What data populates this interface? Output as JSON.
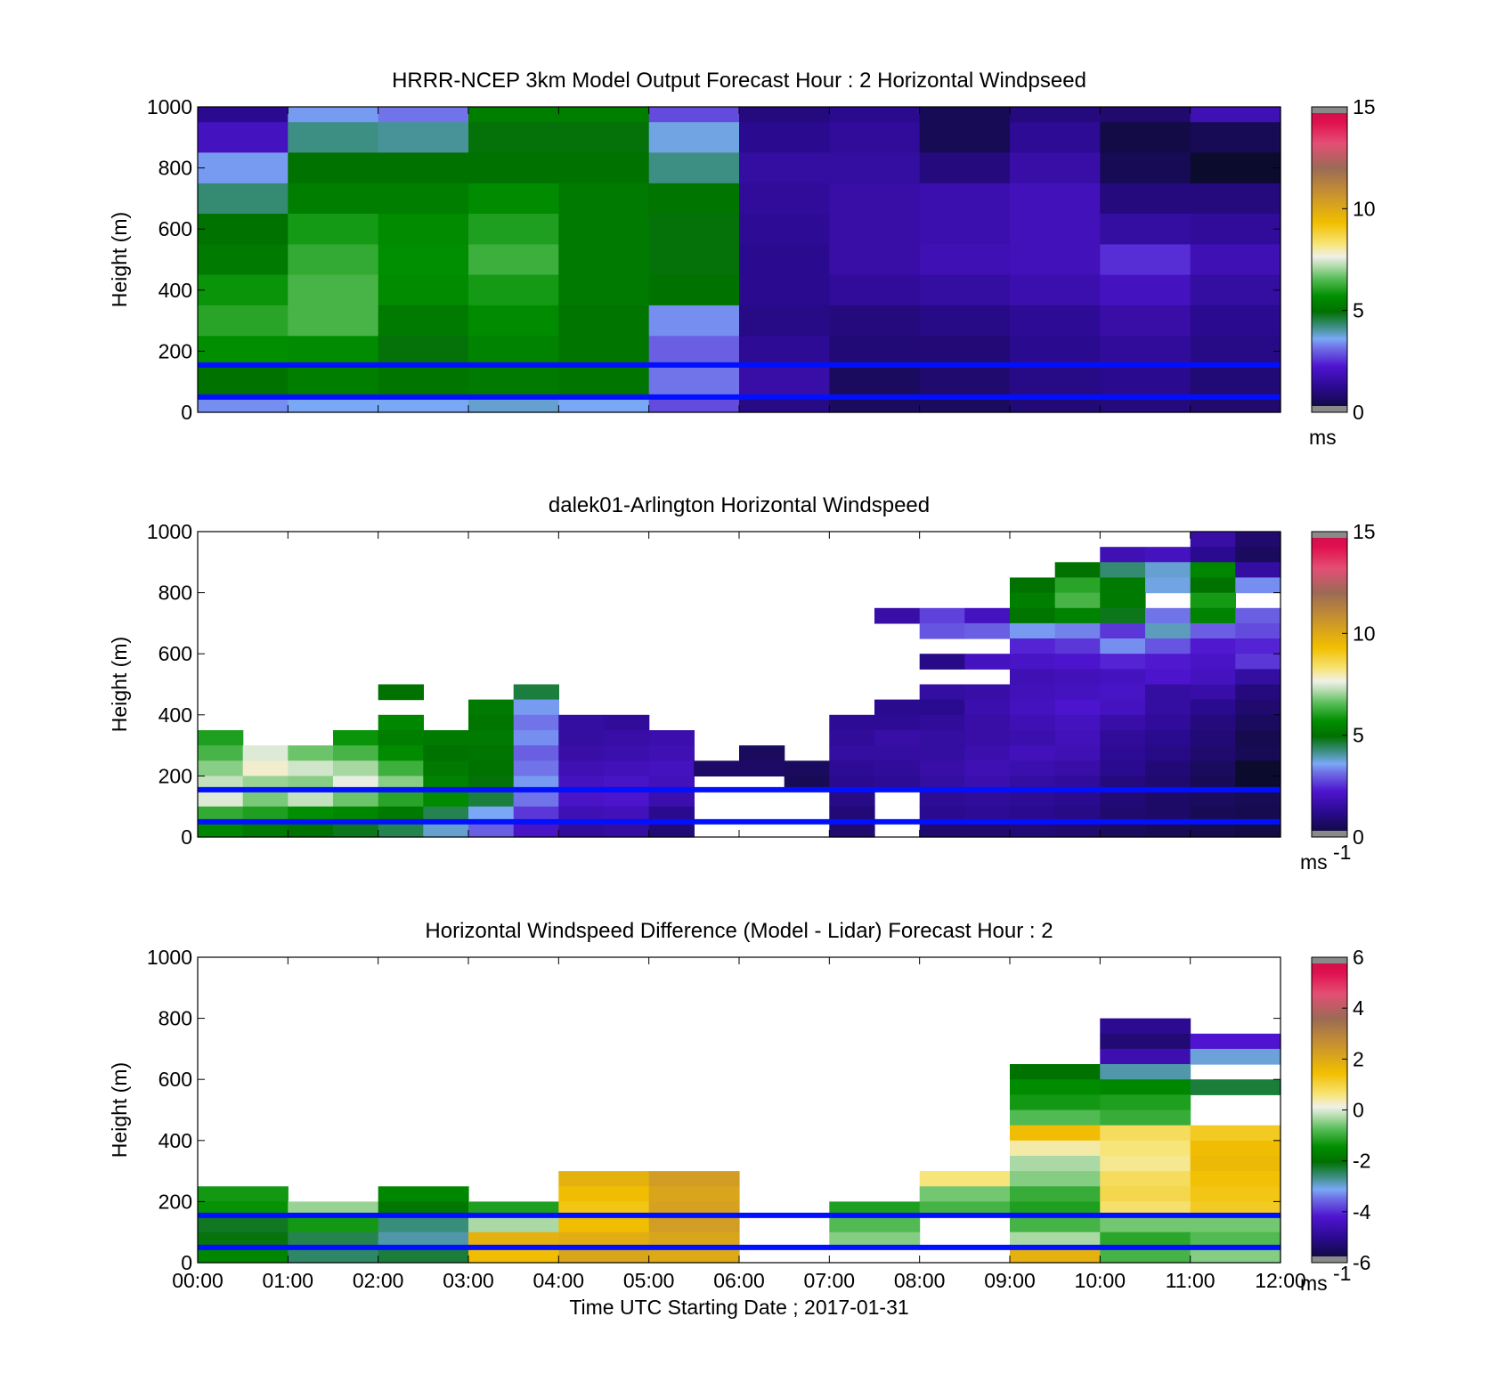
{
  "chart_data": [
    {
      "type": "heatmap",
      "title": "HRRR-NCEP 3km Model Output   Forecast Hour : 2 Horizontal Windpseed",
      "ylabel": "Height (m)",
      "xlabel": "",
      "xlim": [
        0,
        12
      ],
      "ylim": [
        0,
        1000
      ],
      "yticks": [
        "0",
        "200",
        "400",
        "600",
        "800",
        "1000"
      ],
      "xticks": [
        "",
        "",
        "",
        "",
        "",
        "",
        "",
        "",
        "",
        "",
        "",
        "",
        ""
      ],
      "colorbar": {
        "min": 0,
        "max": 15,
        "ticks": [
          "0",
          "5",
          "10",
          "15"
        ],
        "unit": "ms",
        "unit_sup": ""
      },
      "reference_lines_m": [
        155,
        50
      ],
      "grid": false,
      "x_hours": [
        0,
        1,
        2,
        3,
        4,
        5,
        6,
        7,
        8,
        9,
        10,
        11
      ],
      "heights_m": [
        1000,
        900,
        800,
        700,
        600,
        500,
        400,
        300,
        200,
        100,
        0
      ],
      "values": [
        [
          1.2,
          3.5,
          3.2,
          5.3,
          5.3,
          2.8,
          1.0,
          1.2,
          0.5,
          1.0,
          0.8,
          1.8
        ],
        [
          2.0,
          4.2,
          4.1,
          4.9,
          4.9,
          3.7,
          1.2,
          1.4,
          0.5,
          1.3,
          0.3,
          0.5
        ],
        [
          3.5,
          5.0,
          5.0,
          5.0,
          5.0,
          4.2,
          1.5,
          1.5,
          1.0,
          1.6,
          0.5,
          0.0
        ],
        [
          4.3,
          5.3,
          5.3,
          5.6,
          5.2,
          5.1,
          1.4,
          1.6,
          1.7,
          1.9,
          1.0,
          1.0
        ],
        [
          5.0,
          5.9,
          5.6,
          6.0,
          5.2,
          4.9,
          1.3,
          1.6,
          1.7,
          1.9,
          1.5,
          1.4
        ],
        [
          5.2,
          6.2,
          5.7,
          6.3,
          5.2,
          4.9,
          1.2,
          1.6,
          1.8,
          1.9,
          2.5,
          1.8
        ],
        [
          5.8,
          6.4,
          5.6,
          5.9,
          5.2,
          5.0,
          1.2,
          1.4,
          1.5,
          1.7,
          2.0,
          1.5
        ],
        [
          6.1,
          6.4,
          5.2,
          5.6,
          5.1,
          3.4,
          1.1,
          1.0,
          1.1,
          1.3,
          1.6,
          1.2
        ],
        [
          5.7,
          5.6,
          4.9,
          5.4,
          5.1,
          3.0,
          1.3,
          0.9,
          0.9,
          1.2,
          1.4,
          1.1
        ],
        [
          5.0,
          5.3,
          5.1,
          5.2,
          5.1,
          3.2,
          1.6,
          0.6,
          0.8,
          1.1,
          1.2,
          0.9
        ],
        [
          3.4,
          3.6,
          3.6,
          3.8,
          3.6,
          2.8,
          1.1,
          0.6,
          0.6,
          0.9,
          1.0,
          0.8
        ]
      ]
    },
    {
      "type": "heatmap",
      "title": "dalek01-Arlington  Horizontal Windspeed",
      "ylabel": "Height (m)",
      "xlabel": "",
      "xlim": [
        0,
        12
      ],
      "ylim": [
        0,
        1000
      ],
      "yticks": [
        "0",
        "200",
        "400",
        "600",
        "800",
        "1000"
      ],
      "xticks": [
        "",
        "",
        "",
        "",
        "",
        "",
        "",
        "",
        "",
        "",
        "",
        "",
        ""
      ],
      "colorbar": {
        "min": 0,
        "max": 15,
        "ticks": [
          "0",
          "5",
          "10",
          "15"
        ],
        "unit": "ms",
        "unit_sup": "-1"
      },
      "reference_lines_m": [
        155,
        50
      ],
      "grid": false,
      "x_hours": [
        0,
        0.5,
        1,
        1.5,
        2,
        2.5,
        3,
        3.5,
        4,
        4.5,
        5,
        5.5,
        6,
        6.5,
        7,
        7.5,
        8,
        8.5,
        9,
        9.5,
        10,
        10.5,
        11,
        11.5
      ],
      "heights_m": [
        975,
        925,
        875,
        825,
        775,
        725,
        675,
        625,
        575,
        525,
        475,
        425,
        375,
        325,
        275,
        225,
        175,
        125,
        75,
        25
      ],
      "values": [
        [
          null,
          null,
          null,
          null,
          null,
          null,
          null,
          null,
          null,
          null,
          null,
          null,
          null,
          null,
          null,
          null,
          null,
          null,
          null,
          null,
          null,
          null,
          1.6,
          0.8
        ],
        [
          null,
          null,
          null,
          null,
          null,
          null,
          null,
          null,
          null,
          null,
          null,
          null,
          null,
          null,
          null,
          null,
          null,
          null,
          null,
          null,
          1.8,
          2.0,
          1.2,
          0.6
        ],
        [
          null,
          null,
          null,
          null,
          null,
          null,
          null,
          null,
          null,
          null,
          null,
          null,
          null,
          null,
          null,
          null,
          null,
          null,
          null,
          5.0,
          4.3,
          3.8,
          5.5,
          1.5
        ],
        [
          null,
          null,
          null,
          null,
          null,
          null,
          null,
          null,
          null,
          null,
          null,
          null,
          null,
          null,
          null,
          null,
          null,
          null,
          5.0,
          6.1,
          5.2,
          3.7,
          5.0,
          3.4
        ],
        [
          null,
          null,
          null,
          null,
          null,
          null,
          null,
          null,
          null,
          null,
          null,
          null,
          null,
          null,
          null,
          null,
          null,
          null,
          5.3,
          6.4,
          5.2,
          null,
          5.9,
          null
        ],
        [
          null,
          null,
          null,
          null,
          null,
          null,
          null,
          null,
          null,
          null,
          null,
          null,
          null,
          null,
          null,
          1.6,
          2.7,
          2.0,
          5.1,
          5.4,
          4.8,
          3.2,
          5.4,
          3.0
        ],
        [
          null,
          null,
          null,
          null,
          null,
          null,
          null,
          null,
          null,
          null,
          null,
          null,
          null,
          null,
          null,
          null,
          2.9,
          3.0,
          3.5,
          3.3,
          2.6,
          3.9,
          3.0,
          2.8
        ],
        [
          null,
          null,
          null,
          null,
          null,
          null,
          null,
          null,
          null,
          null,
          null,
          null,
          null,
          null,
          null,
          null,
          null,
          null,
          2.4,
          2.6,
          3.4,
          2.9,
          2.3,
          2.4
        ],
        [
          null,
          null,
          null,
          null,
          null,
          null,
          null,
          null,
          null,
          null,
          null,
          null,
          null,
          null,
          null,
          null,
          1.1,
          2.0,
          2.1,
          2.2,
          2.4,
          2.3,
          2.1,
          2.6
        ],
        [
          null,
          null,
          null,
          null,
          null,
          null,
          null,
          null,
          null,
          null,
          null,
          null,
          null,
          null,
          null,
          null,
          null,
          null,
          1.8,
          1.9,
          2.0,
          2.2,
          2.0,
          1.5
        ],
        [
          null,
          null,
          null,
          null,
          5.0,
          null,
          null,
          4.6,
          null,
          null,
          null,
          null,
          null,
          null,
          null,
          null,
          1.5,
          1.6,
          1.9,
          2.0,
          2.1,
          1.5,
          1.6,
          1.0
        ],
        [
          null,
          null,
          null,
          null,
          null,
          null,
          5.2,
          3.5,
          null,
          null,
          null,
          null,
          null,
          null,
          null,
          1.2,
          1.2,
          1.7,
          2.0,
          2.2,
          2.0,
          1.5,
          1.2,
          0.8
        ],
        [
          null,
          null,
          null,
          null,
          5.5,
          null,
          5.1,
          3.2,
          1.5,
          1.4,
          null,
          null,
          null,
          null,
          1.3,
          1.3,
          1.4,
          1.6,
          1.8,
          2.0,
          1.6,
          1.4,
          1.0,
          0.6
        ],
        [
          6.0,
          null,
          null,
          5.8,
          5.3,
          5.2,
          5.2,
          3.4,
          1.5,
          1.6,
          1.7,
          null,
          null,
          null,
          1.4,
          1.6,
          1.5,
          1.6,
          1.7,
          1.9,
          1.4,
          1.2,
          0.9,
          0.4
        ],
        [
          6.4,
          7.5,
          6.7,
          6.4,
          5.6,
          5.0,
          5.1,
          3.0,
          1.6,
          1.7,
          1.8,
          null,
          0.6,
          null,
          1.5,
          1.5,
          1.5,
          1.7,
          1.9,
          1.8,
          1.3,
          1.1,
          0.8,
          0.5
        ],
        [
          6.9,
          7.8,
          7.4,
          7.1,
          6.3,
          5.2,
          5.0,
          3.2,
          1.8,
          1.9,
          2.0,
          0.7,
          0.7,
          0.6,
          1.3,
          1.4,
          1.6,
          1.8,
          1.7,
          1.6,
          1.2,
          0.9,
          0.6,
          0.0
        ],
        [
          7.3,
          7.0,
          6.9,
          7.6,
          6.9,
          5.4,
          4.9,
          3.5,
          2.0,
          2.1,
          1.9,
          null,
          null,
          0.5,
          1.2,
          1.3,
          1.5,
          1.7,
          1.5,
          1.4,
          1.0,
          0.8,
          0.5,
          0.0
        ],
        [
          7.5,
          6.8,
          7.3,
          6.7,
          6.1,
          5.6,
          4.6,
          3.2,
          2.1,
          2.2,
          1.7,
          null,
          null,
          null,
          1.1,
          null,
          1.3,
          1.4,
          1.3,
          1.2,
          0.9,
          0.7,
          0.6,
          0.5
        ],
        [
          6.2,
          6.0,
          5.7,
          5.5,
          5.2,
          4.5,
          3.6,
          2.6,
          1.8,
          1.9,
          1.2,
          null,
          null,
          null,
          0.9,
          null,
          1.2,
          1.3,
          1.2,
          1.1,
          0.8,
          0.7,
          0.5,
          0.4
        ],
        [
          5.5,
          5.2,
          5.0,
          4.8,
          4.5,
          3.8,
          3.0,
          2.1,
          1.4,
          1.5,
          0.9,
          null,
          null,
          null,
          0.8,
          null,
          0.8,
          0.8,
          0.9,
          0.8,
          0.6,
          0.5,
          0.4,
          0.3
        ]
      ]
    },
    {
      "type": "heatmap",
      "title": "Horizontal Windspeed Difference (Model - Lidar) Forecast Hour : 2",
      "ylabel": "Height (m)",
      "xlabel": "Time UTC  Starting Date ; 2017-01-31",
      "xlim": [
        0,
        12
      ],
      "ylim": [
        0,
        1000
      ],
      "yticks": [
        "0",
        "200",
        "400",
        "600",
        "800",
        "1000"
      ],
      "xticks": [
        "00:00",
        "01:00",
        "02:00",
        "03:00",
        "04:00",
        "05:00",
        "06:00",
        "07:00",
        "08:00",
        "09:00",
        "10:00",
        "11:00",
        "12:00"
      ],
      "colorbar": {
        "min": -6,
        "max": 6,
        "ticks": [
          "-6",
          "-4",
          "-2",
          "0",
          "2",
          "4",
          "6"
        ],
        "unit": "ms",
        "unit_sup": "-1"
      },
      "reference_lines_m": [
        155,
        50
      ],
      "grid": false,
      "x_hours": [
        0,
        1,
        2,
        3,
        4,
        5,
        6,
        7,
        8,
        9,
        10,
        11
      ],
      "heights_m": [
        775,
        725,
        675,
        625,
        575,
        525,
        475,
        425,
        375,
        325,
        275,
        225,
        175,
        125,
        75,
        25
      ],
      "values": [
        [
          null,
          null,
          null,
          null,
          null,
          null,
          null,
          null,
          null,
          null,
          -5.0,
          null
        ],
        [
          null,
          null,
          null,
          null,
          null,
          null,
          null,
          null,
          null,
          null,
          -5.3,
          -4.2
        ],
        [
          null,
          null,
          null,
          null,
          null,
          null,
          null,
          null,
          null,
          null,
          -4.6,
          -3.0
        ],
        [
          null,
          null,
          null,
          null,
          null,
          null,
          null,
          null,
          null,
          -2.0,
          -2.8,
          null
        ],
        [
          null,
          null,
          null,
          null,
          null,
          null,
          null,
          null,
          null,
          -1.5,
          -1.6,
          -2.3
        ],
        [
          null,
          null,
          null,
          null,
          null,
          null,
          null,
          null,
          null,
          -1.3,
          -1.2,
          null
        ],
        [
          null,
          null,
          null,
          null,
          null,
          null,
          null,
          null,
          null,
          -0.8,
          -1.0,
          null
        ],
        [
          null,
          null,
          null,
          null,
          null,
          null,
          null,
          null,
          null,
          1.5,
          0.8,
          1.2
        ],
        [
          null,
          null,
          null,
          null,
          null,
          null,
          null,
          null,
          null,
          0.4,
          0.6,
          1.5
        ],
        [
          null,
          null,
          null,
          null,
          null,
          null,
          null,
          null,
          null,
          -0.3,
          0.5,
          1.6
        ],
        [
          null,
          null,
          null,
          null,
          1.8,
          2.3,
          null,
          null,
          0.6,
          -0.5,
          0.8,
          1.4
        ],
        [
          -1.3,
          null,
          -1.6,
          null,
          1.5,
          2.1,
          null,
          null,
          -0.6,
          -1.0,
          0.9,
          1.3
        ],
        [
          -1.4,
          -0.4,
          -1.9,
          -1.2,
          1.3,
          2.2,
          null,
          -1.2,
          -0.9,
          -1.2,
          0.7,
          1.2
        ],
        [
          -2.2,
          -1.3,
          -2.6,
          -0.3,
          1.5,
          2.3,
          null,
          -0.8,
          null,
          -0.9,
          -0.6,
          -0.6
        ],
        [
          -2.1,
          -2.4,
          -2.8,
          1.8,
          1.9,
          2.1,
          null,
          -0.5,
          null,
          -0.3,
          -1.1,
          -0.8
        ],
        [
          -1.6,
          -2.5,
          -2.3,
          1.5,
          2.1,
          2.0,
          null,
          null,
          null,
          1.8,
          -0.9,
          -0.5
        ]
      ]
    }
  ]
}
